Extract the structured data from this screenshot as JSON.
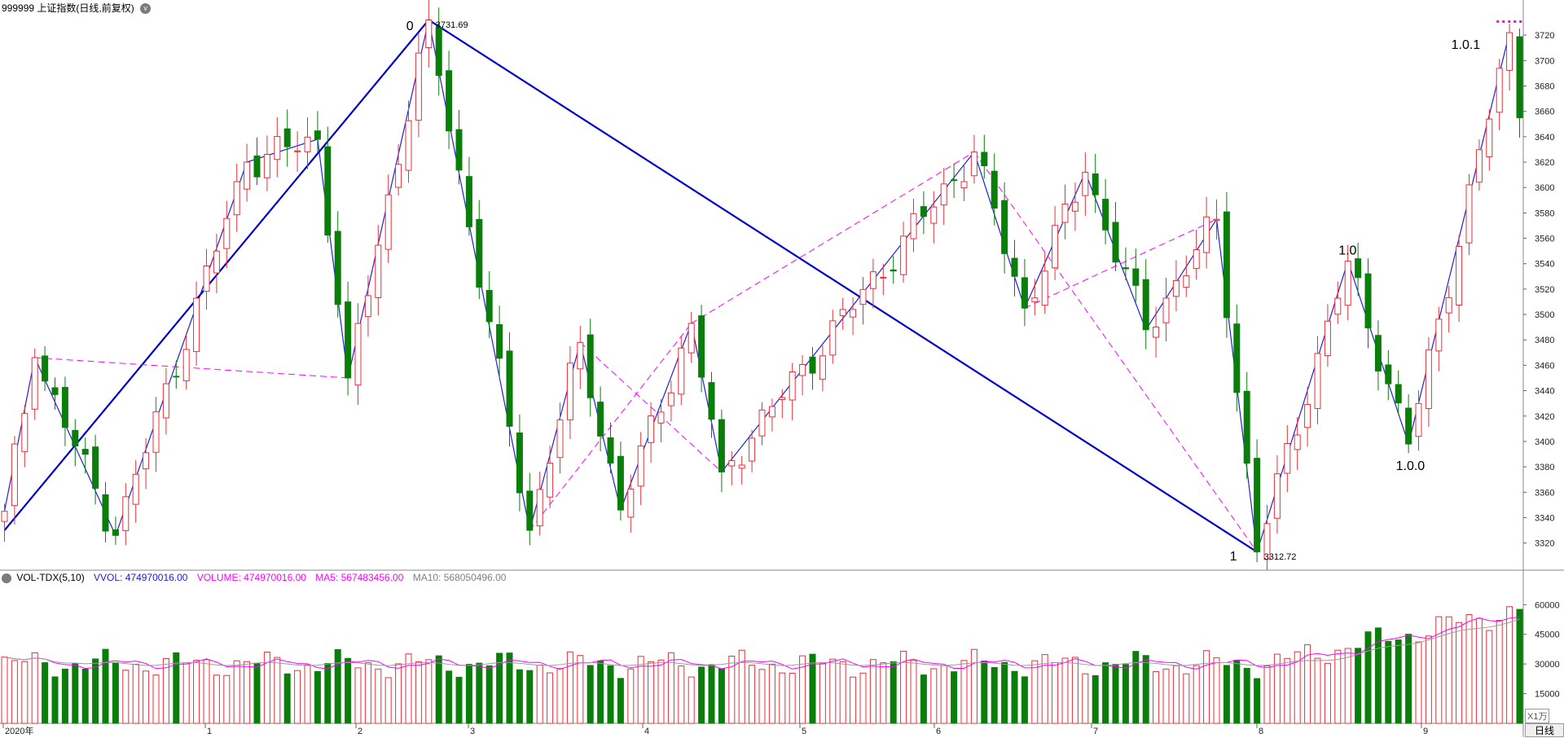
{
  "header": {
    "title": "999999 上证指数(日线,前复权)",
    "caret": "v"
  },
  "volume_header": {
    "indicator": "VOL-TDX(5,10)",
    "vvol": "VVOL: 474970016.00",
    "volume": "VOLUME: 474970016.00",
    "ma5": "MA5: 567483456.00",
    "ma10": "MA10: 568050496.00"
  },
  "period_tab": "日线",
  "unit_tag": "X1万",
  "colors": {
    "up": "#e8303a",
    "down": "#0b7d0b",
    "zigzag_bold": "#0000cc",
    "zigzag_thin": "#2020e0",
    "dashed": "#ff00ff",
    "ma5": "#ff00ff",
    "ma10": "#9b9b9b"
  },
  "chart_data": {
    "type": "candlestick",
    "price_axis": {
      "ticks": [
        3320,
        3340,
        3360,
        3380,
        3400,
        3420,
        3440,
        3460,
        3480,
        3500,
        3520,
        3540,
        3560,
        3580,
        3600,
        3620,
        3640,
        3660,
        3680,
        3700,
        3720
      ],
      "ylim": [
        3305,
        3740
      ]
    },
    "volume_axis": {
      "ticks": [
        15000,
        30000,
        45000,
        60000
      ],
      "ylim": [
        0,
        70000
      ]
    },
    "month_labels": [
      "2020年",
      "1",
      "2",
      "3",
      "4",
      "5",
      "6",
      "7",
      "8",
      "9"
    ],
    "annotations": [
      {
        "text": "0",
        "price": 3731.69
      },
      {
        "text": "3731.69",
        "price": 3731.69
      },
      {
        "text": "1",
        "price": 3312.72
      },
      {
        "text": "3312.72",
        "price": 3312.72
      },
      {
        "text": "1.0",
        "price": 3542
      },
      {
        "text": "1.0.0",
        "price": 3398
      },
      {
        "text": "1.0.1",
        "price": 3722
      }
    ],
    "pivots": [
      [
        0,
        3345
      ],
      [
        3,
        3466
      ],
      [
        11,
        3326
      ],
      [
        24,
        3620
      ],
      [
        31,
        3638
      ],
      [
        34,
        3450
      ],
      [
        42,
        3732
      ],
      [
        52,
        3330
      ],
      [
        57,
        3478
      ],
      [
        61,
        3346
      ],
      [
        68,
        3493
      ],
      [
        71,
        3376
      ],
      [
        96,
        3628
      ],
      [
        101,
        3505
      ],
      [
        107,
        3612
      ],
      [
        113,
        3488
      ],
      [
        120,
        3575
      ],
      [
        124,
        3313
      ],
      [
        133,
        3542
      ],
      [
        139,
        3398
      ],
      [
        149,
        3722
      ]
    ],
    "bold_pivots": [
      [
        0,
        3330
      ],
      [
        42,
        3732
      ],
      [
        124,
        3313
      ]
    ],
    "dashed_segments": [
      [
        [
          3,
          3466
        ],
        [
          34,
          3450
        ]
      ],
      [
        [
          52,
          3330
        ],
        [
          68,
          3493
        ]
      ],
      [
        [
          57,
          3478
        ],
        [
          71,
          3376
        ]
      ],
      [
        [
          68,
          3493
        ],
        [
          96,
          3628
        ]
      ],
      [
        [
          96,
          3628
        ],
        [
          124,
          3313
        ]
      ],
      [
        [
          101,
          3505
        ],
        [
          120,
          3575
        ]
      ]
    ],
    "volume_scale": "X1万"
  }
}
